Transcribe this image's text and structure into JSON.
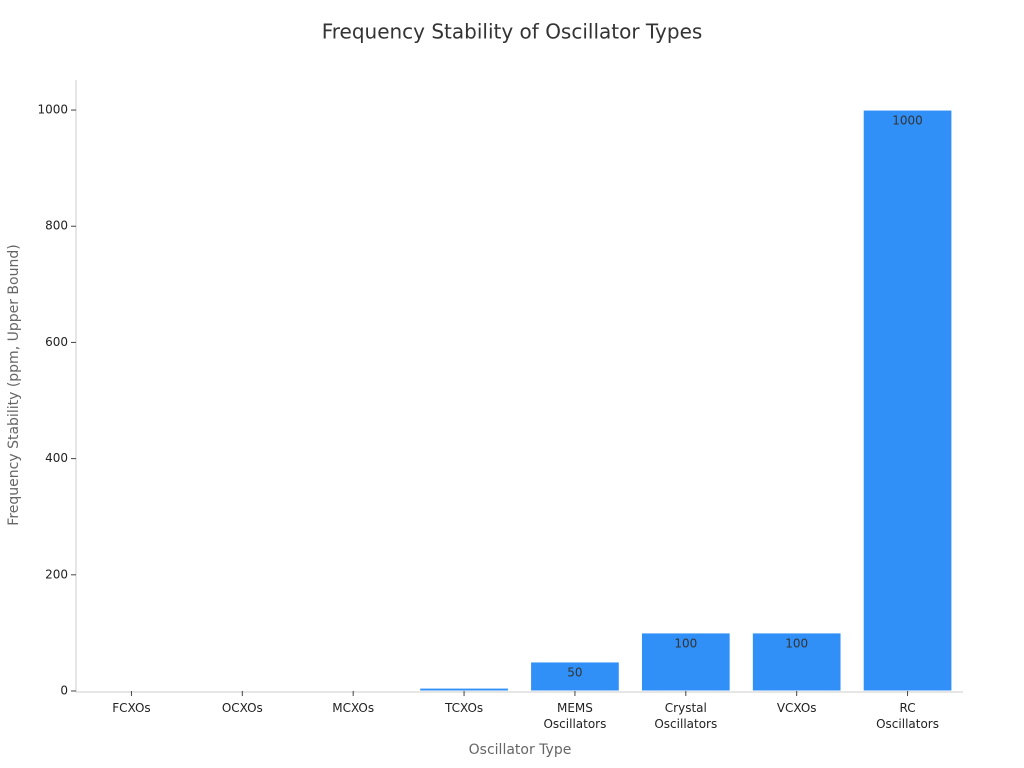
{
  "chart_data": {
    "type": "bar",
    "title": "Frequency Stability of Oscillator Types",
    "x_label": "Oscillator Type",
    "y_label": "Frequency Stability (ppm, Upper Bound)",
    "categories": [
      "FCXOs",
      "OCXOs",
      "MCXOs",
      "TCXOs",
      "MEMS Oscillators",
      "Crystal Oscillators",
      "VCXOs",
      "RC Oscillators"
    ],
    "values": [
      0.01,
      0.1,
      1,
      5,
      50,
      100,
      100,
      1000
    ],
    "value_labels": [
      null,
      null,
      null,
      null,
      "50",
      "100",
      "100",
      "1000"
    ],
    "color": "#3090f8",
    "ylim": [
      0,
      1050
    ],
    "yticks": [
      0,
      200,
      400,
      600,
      800,
      1000
    ],
    "grid": false
  }
}
